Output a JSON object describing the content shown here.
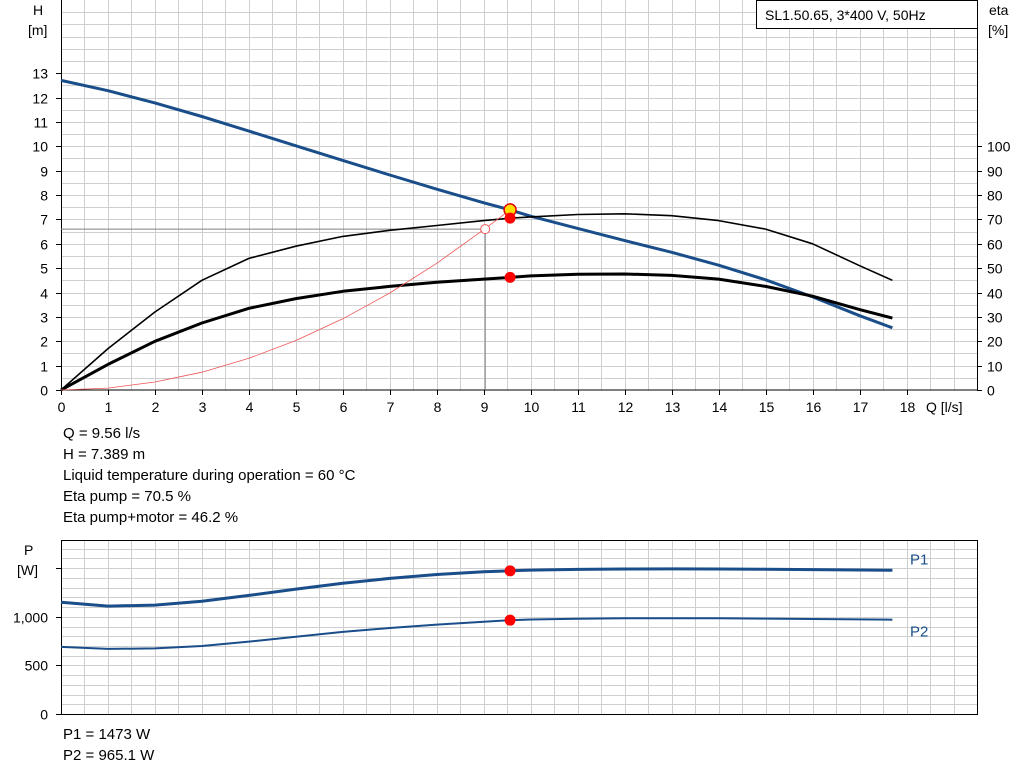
{
  "model_label": "SL1.50.65, 3*400 V, 50Hz",
  "top_info": {
    "q": "Q = 9.56 l/s",
    "h": "H = 7.389 m",
    "temp": "Liquid temperature during operation = 60 °C",
    "eta_pump": "Eta pump = 70.5 %",
    "eta_total": "Eta pump+motor = 46.2 %"
  },
  "bottom_info": {
    "p1": "P1 = 1473 W",
    "p2": "P2 = 965.1 W"
  },
  "chart_data": [
    {
      "type": "line",
      "xlabel": "Q [l/s]",
      "ylabel": "H [m]",
      "y2label": "eta [%]",
      "h_axis": {
        "label_top": "H",
        "label_unit": "[m]",
        "ticks": [
          0,
          1,
          2,
          3,
          4,
          5,
          6,
          7,
          8,
          9,
          10,
          11,
          12,
          13
        ],
        "ylim": [
          0,
          16
        ]
      },
      "eta_axis": {
        "label_top": "eta",
        "label_unit": "[%]",
        "ticks": [
          0,
          10,
          20,
          30,
          40,
          50,
          60,
          70,
          80,
          90,
          100
        ],
        "ylim": [
          0,
          160
        ]
      },
      "x_axis": {
        "ticks": [
          0,
          1,
          2,
          3,
          4,
          5,
          6,
          7,
          8,
          9,
          10,
          11,
          12,
          13,
          14,
          15,
          16,
          17,
          18
        ],
        "unit_label": "Q [l/s]",
        "xlim": [
          0,
          19.5
        ]
      },
      "grid": true,
      "series": [
        {
          "name": "H",
          "axis": "h",
          "color": "#1a4e8a",
          "x": [
            0,
            1,
            2,
            3,
            4,
            5,
            6,
            7,
            8,
            9,
            9.56,
            10,
            11,
            12,
            13,
            14,
            15,
            16,
            17,
            17.7
          ],
          "y": [
            12.7,
            12.28,
            11.78,
            11.22,
            10.62,
            10.02,
            9.42,
            8.82,
            8.24,
            7.68,
            7.389,
            7.13,
            6.63,
            6.13,
            5.65,
            5.12,
            4.52,
            3.82,
            3.05,
            2.55
          ]
        },
        {
          "name": "Eta pump",
          "axis": "eta",
          "color": "#000000",
          "x": [
            0,
            1,
            2,
            3,
            4,
            5,
            6,
            7,
            8,
            9,
            9.56,
            10,
            11,
            12,
            13,
            14,
            15,
            16,
            17,
            17.7
          ],
          "y": [
            0,
            17,
            32,
            45,
            54,
            59,
            63,
            65.5,
            67.5,
            69.5,
            70.5,
            71,
            72,
            72.3,
            71.5,
            69.5,
            66,
            60,
            51,
            45
          ]
        },
        {
          "name": "Eta pump+motor",
          "axis": "eta",
          "color": "#000000",
          "x": [
            0,
            1,
            2,
            3,
            4,
            5,
            6,
            7,
            8,
            9,
            9.56,
            10,
            11,
            12,
            13,
            14,
            15,
            16,
            17,
            17.7
          ],
          "y": [
            0,
            10.5,
            20,
            27.5,
            33.5,
            37.5,
            40.5,
            42.5,
            44.2,
            45.5,
            46.2,
            46.8,
            47.5,
            47.6,
            47,
            45.5,
            42.5,
            38.5,
            33,
            29.5
          ]
        },
        {
          "name": "Operating point trace",
          "axis": "h",
          "color": "#ee5555",
          "x": [
            0,
            1,
            2,
            3,
            4,
            5,
            6,
            7,
            8,
            9,
            9.56
          ],
          "y": [
            0,
            0.08,
            0.33,
            0.73,
            1.3,
            2.03,
            2.92,
            3.98,
            5.2,
            6.58,
            7.389
          ]
        }
      ],
      "reference_point": {
        "q": 9.03,
        "h": 6.6
      },
      "duty_points": [
        {
          "axis": "h",
          "x": 9.56,
          "y": 7.389,
          "color": "#ffdd00"
        },
        {
          "axis": "eta",
          "x": 9.56,
          "y": 70.5,
          "color": "#ff0000"
        },
        {
          "axis": "eta",
          "x": 9.56,
          "y": 46.2,
          "color": "#ff0000"
        }
      ]
    },
    {
      "type": "line",
      "ylabel": "P [W]",
      "p_axis": {
        "label_top": "P",
        "label_unit": "[W]",
        "ticks": [
          0,
          500,
          1000,
          1500
        ],
        "tick_labels": [
          "0",
          "500",
          "1,000",
          ""
        ],
        "ylim": [
          0,
          1790
        ]
      },
      "xlim": [
        0,
        19.5
      ],
      "grid": true,
      "series": [
        {
          "name": "P1",
          "color": "#1a4e8a",
          "x": [
            0,
            1,
            2,
            3,
            4,
            5,
            6,
            7,
            8,
            9,
            9.56,
            10,
            11,
            12,
            13,
            14,
            15,
            16,
            17,
            17.7
          ],
          "y": [
            1150,
            1110,
            1120,
            1160,
            1220,
            1285,
            1345,
            1395,
            1435,
            1463,
            1473,
            1480,
            1488,
            1492,
            1493,
            1492,
            1490,
            1486,
            1481,
            1478
          ]
        },
        {
          "name": "P2",
          "color": "#1a4e8a",
          "x": [
            0,
            1,
            2,
            3,
            4,
            5,
            6,
            7,
            8,
            9,
            9.56,
            10,
            11,
            12,
            13,
            14,
            15,
            16,
            17,
            17.7
          ],
          "y": [
            690,
            670,
            675,
            700,
            745,
            795,
            845,
            885,
            920,
            950,
            965.1,
            972,
            980,
            985,
            985,
            984,
            981,
            977,
            973,
            970
          ]
        }
      ],
      "duty_points": [
        {
          "x": 9.56,
          "y": 1473,
          "color": "#ff0000"
        },
        {
          "x": 9.56,
          "y": 965.1,
          "color": "#ff0000"
        }
      ]
    }
  ]
}
